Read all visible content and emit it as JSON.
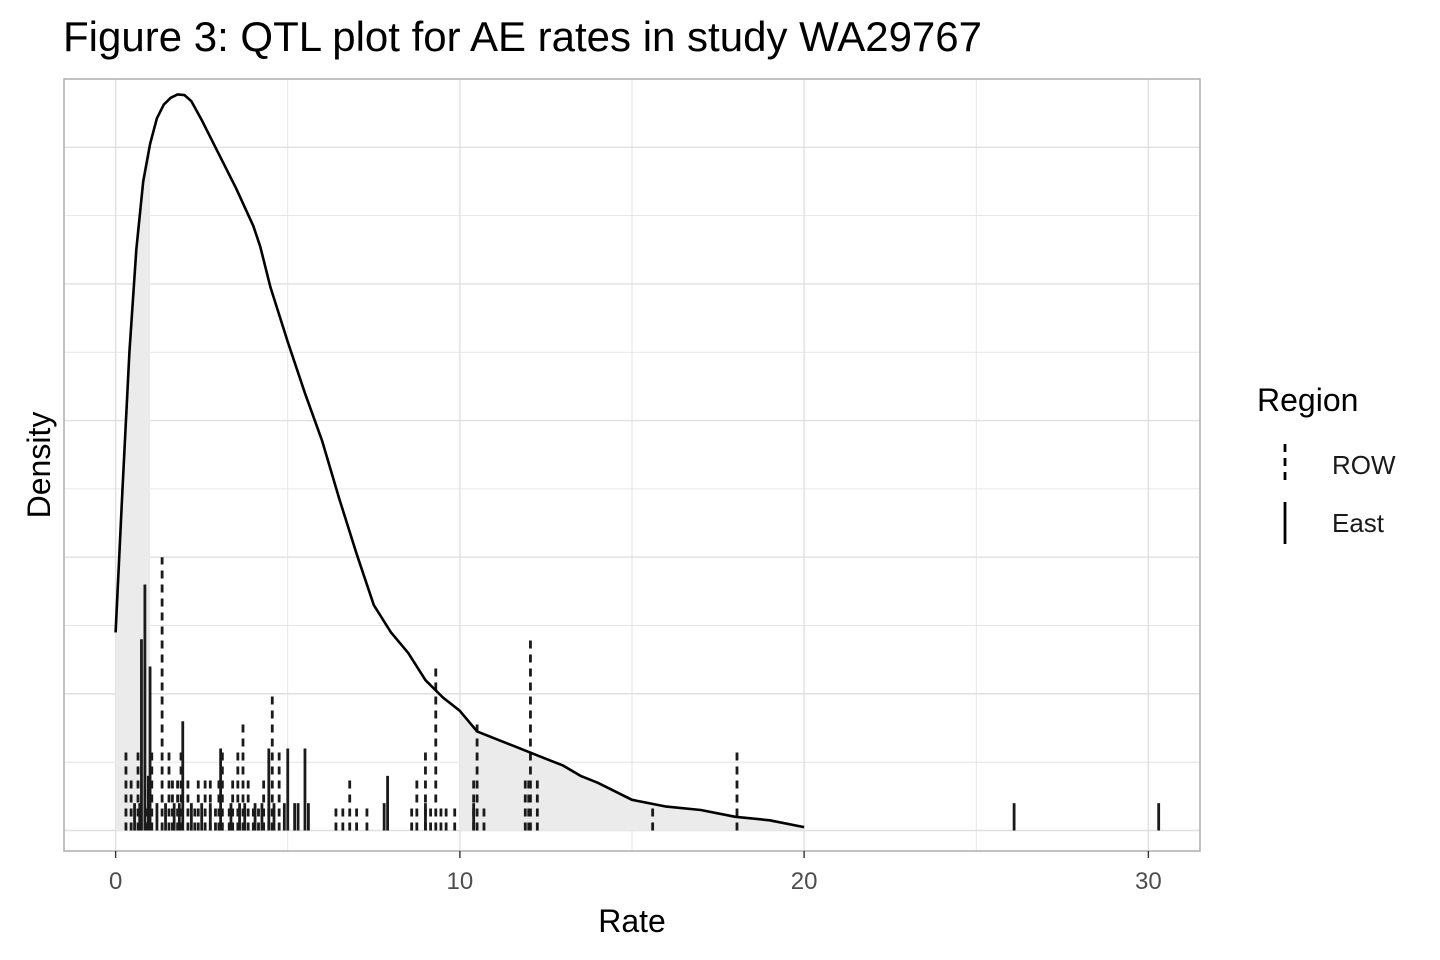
{
  "chart_data": {
    "type": "density-rug",
    "title": "Figure 3: QTL plot for AE rates in study WA29767",
    "xlabel": "Rate",
    "ylabel": "Density",
    "xlim": [
      -1.5,
      31.5
    ],
    "ylim": [
      -0.006,
      0.22
    ],
    "x_ticks": [
      0,
      10,
      20,
      30
    ],
    "x_minor_ticks": [
      5,
      15,
      25
    ],
    "y_grid_major": [
      0,
      0.04,
      0.08,
      0.12,
      0.16,
      0.2
    ],
    "y_grid_minor": [
      0.02,
      0.06,
      0.1,
      0.14,
      0.18
    ],
    "y_tick_labels_shown": false,
    "grid": true,
    "colors": {
      "line": "#000000",
      "shade": "#ebebeb",
      "grid": "#e0e0e0",
      "panel_border": "#b3b3b3",
      "tick_text": "#4d4d4d"
    },
    "density_curve": {
      "x": [
        0,
        0.2,
        0.4,
        0.6,
        0.8,
        1.0,
        1.2,
        1.4,
        1.6,
        1.8,
        2.0,
        2.2,
        2.5,
        3.0,
        3.5,
        4.0,
        4.2,
        4.5,
        5.0,
        5.5,
        6.0,
        6.5,
        7.0,
        7.5,
        8.0,
        8.5,
        9.0,
        9.5,
        10.0,
        10.5,
        11.0,
        11.5,
        12.0,
        12.5,
        13.0,
        13.5,
        14.0,
        15.0,
        16.0,
        17.0,
        18.0,
        19.0,
        20.0
      ],
      "y": [
        0.058,
        0.1,
        0.14,
        0.17,
        0.19,
        0.201,
        0.2085,
        0.2125,
        0.2145,
        0.2155,
        0.2153,
        0.2135,
        0.208,
        0.198,
        0.188,
        0.177,
        0.171,
        0.159,
        0.143,
        0.128,
        0.114,
        0.097,
        0.081,
        0.066,
        0.058,
        0.052,
        0.044,
        0.039,
        0.035,
        0.029,
        0.027,
        0.025,
        0.023,
        0.021,
        0.019,
        0.016,
        0.014,
        0.009,
        0.007,
        0.006,
        0.004,
        0.003,
        0.001
      ]
    },
    "shaded_regions": [
      [
        0,
        1
      ],
      [
        10,
        20
      ]
    ],
    "rug_height_unit": 0.008,
    "series": [
      {
        "name": "ROW",
        "dash": "dashed",
        "points": [
          {
            "x": 0.3,
            "n": 3
          },
          {
            "x": 0.45,
            "n": 2
          },
          {
            "x": 0.65,
            "n": 3
          },
          {
            "x": 0.9,
            "n": 1
          },
          {
            "x": 1.05,
            "n": 3
          },
          {
            "x": 1.35,
            "n": 10
          },
          {
            "x": 1.55,
            "n": 3
          },
          {
            "x": 1.65,
            "n": 2
          },
          {
            "x": 1.8,
            "n": 2
          },
          {
            "x": 1.9,
            "n": 3
          },
          {
            "x": 2.1,
            "n": 2
          },
          {
            "x": 2.3,
            "n": 1
          },
          {
            "x": 2.4,
            "n": 2
          },
          {
            "x": 2.6,
            "n": 2
          },
          {
            "x": 2.75,
            "n": 2
          },
          {
            "x": 2.9,
            "n": 1
          },
          {
            "x": 3.0,
            "n": 2
          },
          {
            "x": 3.1,
            "n": 3
          },
          {
            "x": 3.3,
            "n": 1
          },
          {
            "x": 3.4,
            "n": 2
          },
          {
            "x": 3.55,
            "n": 3
          },
          {
            "x": 3.7,
            "n": 4
          },
          {
            "x": 3.85,
            "n": 2
          },
          {
            "x": 4.0,
            "n": 1
          },
          {
            "x": 4.15,
            "n": 1
          },
          {
            "x": 4.3,
            "n": 2
          },
          {
            "x": 4.45,
            "n": 1
          },
          {
            "x": 4.55,
            "n": 5
          },
          {
            "x": 4.75,
            "n": 3
          },
          {
            "x": 6.4,
            "n": 1
          },
          {
            "x": 6.6,
            "n": 1
          },
          {
            "x": 6.8,
            "n": 2
          },
          {
            "x": 7.0,
            "n": 1
          },
          {
            "x": 7.3,
            "n": 1
          },
          {
            "x": 8.6,
            "n": 1
          },
          {
            "x": 8.75,
            "n": 2
          },
          {
            "x": 9.0,
            "n": 3
          },
          {
            "x": 9.15,
            "n": 1
          },
          {
            "x": 9.3,
            "n": 6
          },
          {
            "x": 9.45,
            "n": 1
          },
          {
            "x": 9.6,
            "n": 1
          },
          {
            "x": 9.85,
            "n": 1
          },
          {
            "x": 10.4,
            "n": 2
          },
          {
            "x": 10.5,
            "n": 4
          },
          {
            "x": 10.7,
            "n": 1
          },
          {
            "x": 11.9,
            "n": 2
          },
          {
            "x": 12.0,
            "n": 2
          },
          {
            "x": 12.05,
            "n": 7
          },
          {
            "x": 12.25,
            "n": 2
          },
          {
            "x": 15.6,
            "n": 1
          },
          {
            "x": 18.05,
            "n": 3
          }
        ]
      },
      {
        "name": "East",
        "dash": "solid",
        "points": [
          {
            "x": 0.55,
            "n": 1
          },
          {
            "x": 0.7,
            "n": 1
          },
          {
            "x": 0.75,
            "n": 7
          },
          {
            "x": 0.85,
            "n": 9
          },
          {
            "x": 0.95,
            "n": 2
          },
          {
            "x": 1.0,
            "n": 6
          },
          {
            "x": 1.2,
            "n": 1
          },
          {
            "x": 1.45,
            "n": 1
          },
          {
            "x": 1.7,
            "n": 1
          },
          {
            "x": 1.85,
            "n": 1
          },
          {
            "x": 1.95,
            "n": 4
          },
          {
            "x": 2.2,
            "n": 1
          },
          {
            "x": 2.5,
            "n": 1
          },
          {
            "x": 2.75,
            "n": 1
          },
          {
            "x": 3.05,
            "n": 3
          },
          {
            "x": 3.35,
            "n": 1
          },
          {
            "x": 3.6,
            "n": 1
          },
          {
            "x": 3.75,
            "n": 1
          },
          {
            "x": 4.05,
            "n": 1
          },
          {
            "x": 4.25,
            "n": 1
          },
          {
            "x": 4.45,
            "n": 3
          },
          {
            "x": 4.6,
            "n": 1
          },
          {
            "x": 4.9,
            "n": 1
          },
          {
            "x": 5.0,
            "n": 3
          },
          {
            "x": 5.2,
            "n": 1
          },
          {
            "x": 5.3,
            "n": 1
          },
          {
            "x": 5.5,
            "n": 3
          },
          {
            "x": 5.6,
            "n": 1
          },
          {
            "x": 7.8,
            "n": 1
          },
          {
            "x": 7.9,
            "n": 2
          },
          {
            "x": 9.0,
            "n": 1
          },
          {
            "x": 10.4,
            "n": 1
          },
          {
            "x": 26.1,
            "n": 1
          },
          {
            "x": 30.3,
            "n": 1
          }
        ]
      }
    ],
    "legend": {
      "title": "Region",
      "position": "right",
      "items": [
        {
          "label": "ROW",
          "dash": "dashed"
        },
        {
          "label": "East",
          "dash": "solid"
        }
      ]
    }
  }
}
